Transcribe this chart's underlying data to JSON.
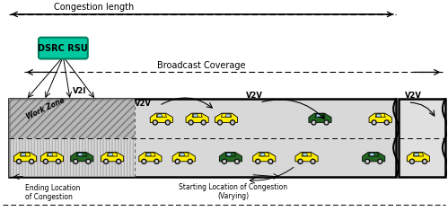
{
  "fig_width": 4.99,
  "fig_height": 2.35,
  "dpi": 100,
  "bg_color": "#ffffff",
  "road_color": "#d8d8d8",
  "road_border_color": "#000000",
  "dsrc_box_facecolor": "#00c8a0",
  "dsrc_box_edgecolor": "#008060",
  "dsrc_text": "DSRC RSU",
  "congestion_label": "Congestion length",
  "broadcast_label": "Broadcast Coverage",
  "v2i_label": "V2I",
  "v2v_labels": [
    "V2V",
    "V2V",
    "V2V"
  ],
  "work_zone_label": "Work Zone",
  "ending_loc_label": "Ending Location\nof Congestion",
  "starting_loc_label": "Starting Location of Congestion\n(Varying)",
  "yellow_car_color": "#ffee00",
  "green_car_color": "#226622",
  "car_border": "#000000",
  "wheel_color": "#111111",
  "window_color": "#aaddff",
  "dashed_color": "#444444"
}
